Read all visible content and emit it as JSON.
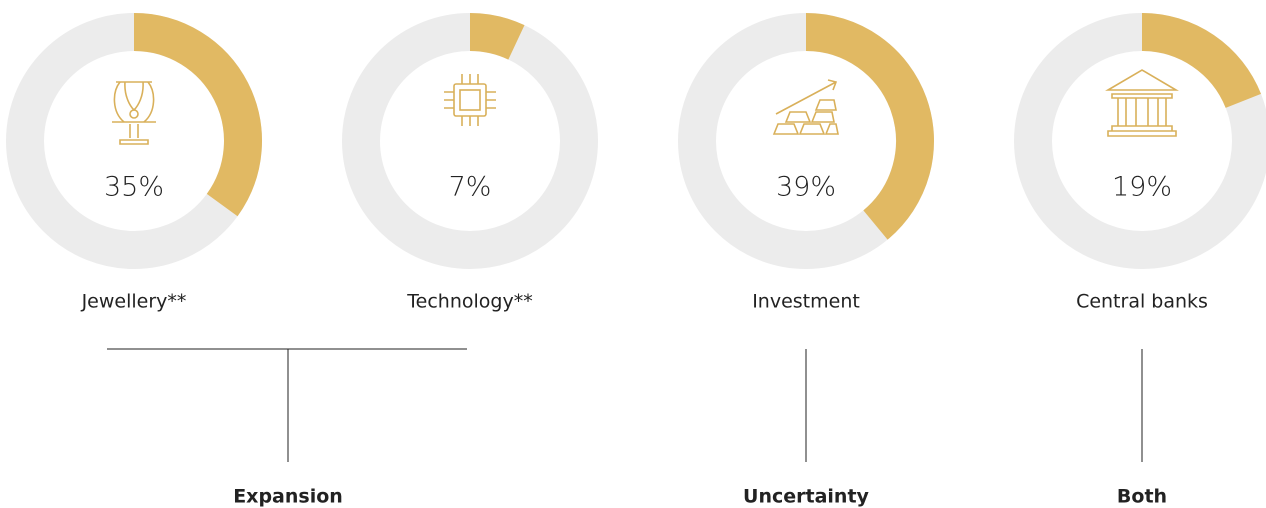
{
  "chart_data": [
    {
      "type": "donut",
      "title": "Jewellery**",
      "values": [
        35
      ],
      "value_labels": [
        "35%"
      ],
      "color": "#e1b963",
      "track_color": "#ececec"
    },
    {
      "type": "donut",
      "title": "Technology**",
      "values": [
        7
      ],
      "value_labels": [
        "7%"
      ],
      "color": "#e1b963",
      "track_color": "#ececec"
    },
    {
      "type": "donut",
      "title": "Investment",
      "values": [
        39
      ],
      "value_labels": [
        "39%"
      ],
      "color": "#e1b963",
      "track_color": "#ececec"
    },
    {
      "type": "donut",
      "title": "Central banks",
      "values": [
        19
      ],
      "value_labels": [
        "19%"
      ],
      "color": "#e1b963",
      "track_color": "#ececec"
    }
  ],
  "groups": [
    {
      "label": "Expansion"
    },
    {
      "label": "Uncertainty"
    },
    {
      "label": "Both"
    }
  ]
}
